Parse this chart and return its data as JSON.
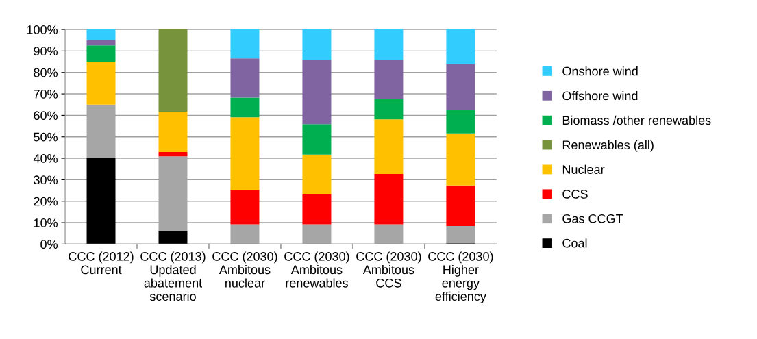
{
  "chart_data": {
    "type": "bar",
    "stacked": true,
    "categories": [
      "CCC (2012)\nCurrent",
      "CCC (2013)\nUpdated\nabatement\nscenario",
      "CCC (2030)\nAmbitous\nnuclear",
      "CCC (2030)\nAmbitous\nrenewables",
      "CCC (2030)\nAmbitous\nCCS",
      "CCC (2030)\nHigher\nenergy\nefficiency"
    ],
    "series": [
      {
        "name": "Coal",
        "color": "#000000",
        "values": [
          40,
          6.2,
          null,
          null,
          null,
          0.4
        ]
      },
      {
        "name": "Gas CCGT",
        "color": "#a6a6a6",
        "values": [
          25,
          34.7,
          9.2,
          9.2,
          9.2,
          8.0
        ]
      },
      {
        "name": "CCS",
        "color": "#ff0000",
        "values": [
          null,
          2.0,
          15.9,
          14.0,
          23.5,
          18.9
        ]
      },
      {
        "name": "Nuclear",
        "color": "#ffc000",
        "values": [
          20,
          18.8,
          34.0,
          18.5,
          25.4,
          24.3
        ]
      },
      {
        "name": "Renewables (all)",
        "color": "#77933c",
        "values": [
          null,
          38.3,
          null,
          null,
          null,
          null
        ]
      },
      {
        "name": "Biomass /other renewables",
        "color": "#00b050",
        "values": [
          7.6,
          null,
          9.2,
          14.2,
          9.5,
          10.9
        ]
      },
      {
        "name": "Offshore wind",
        "color": "#8064a2",
        "values": [
          2.5,
          null,
          18.2,
          30.0,
          18.3,
          21.4
        ]
      },
      {
        "name": "Onshore wind",
        "color": "#33ccff",
        "values": [
          4.9,
          null,
          13.5,
          14.1,
          14.1,
          16.1
        ]
      }
    ],
    "ylim": [
      0,
      100
    ],
    "yticks": [
      {
        "value": 0,
        "label": "0%"
      },
      {
        "value": 10,
        "label": "10%"
      },
      {
        "value": 20,
        "label": "20%"
      },
      {
        "value": 30,
        "label": "30%"
      },
      {
        "value": 40,
        "label": "40%"
      },
      {
        "value": 50,
        "label": "50%"
      },
      {
        "value": 60,
        "label": "60%"
      },
      {
        "value": 70,
        "label": "70%"
      },
      {
        "value": 80,
        "label": "80%"
      },
      {
        "value": 90,
        "label": "90%"
      },
      {
        "value": 100,
        "label": "100%"
      }
    ],
    "grid": "y",
    "legend": "right"
  }
}
